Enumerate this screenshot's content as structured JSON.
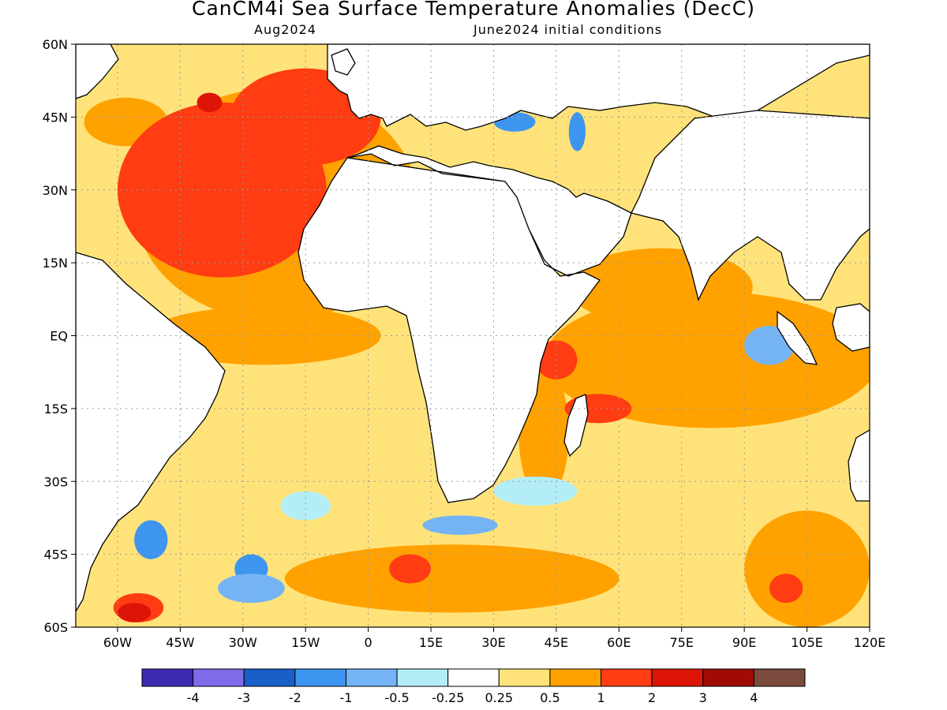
{
  "title": "CanCM4i Sea Surface Temperature Anomalies (DecC)",
  "valid_month": "Aug2024",
  "init_label": "June2024 initial conditions",
  "map": {
    "lon_range": [
      -70,
      120
    ],
    "lat_range": [
      -60,
      60
    ],
    "lat_ticks": [
      {
        "value": 60,
        "label": "60N"
      },
      {
        "value": 45,
        "label": "45N"
      },
      {
        "value": 30,
        "label": "30N"
      },
      {
        "value": 15,
        "label": "15N"
      },
      {
        "value": 0,
        "label": "EQ"
      },
      {
        "value": -15,
        "label": "15S"
      },
      {
        "value": -30,
        "label": "30S"
      },
      {
        "value": -45,
        "label": "45S"
      },
      {
        "value": -60,
        "label": "60S"
      }
    ],
    "lon_ticks": [
      {
        "value": -60,
        "label": "60W"
      },
      {
        "value": -45,
        "label": "45W"
      },
      {
        "value": -30,
        "label": "30W"
      },
      {
        "value": -15,
        "label": "15W"
      },
      {
        "value": 0,
        "label": "0"
      },
      {
        "value": 15,
        "label": "15E"
      },
      {
        "value": 30,
        "label": "30E"
      },
      {
        "value": 45,
        "label": "45E"
      },
      {
        "value": 60,
        "label": "60E"
      },
      {
        "value": 75,
        "label": "75E"
      },
      {
        "value": 90,
        "label": "90E"
      },
      {
        "value": 105,
        "label": "105E"
      },
      {
        "value": 120,
        "label": "120E"
      }
    ]
  },
  "colorbar": {
    "colors": [
      "#3b2bb0",
      "#7d6be8",
      "#1a5fc9",
      "#3e95f0",
      "#74b4f5",
      "#b3eef8",
      "#ffffff",
      "#ffe37a",
      "#ffa200",
      "#ff3c12",
      "#dd1508",
      "#a00c05",
      "#7a4a3c"
    ],
    "labels": [
      "-4",
      "-3",
      "-2",
      "-1",
      "-0.5",
      "-0.25",
      "0.25",
      "0.5",
      "1",
      "2",
      "3",
      "4"
    ]
  },
  "anomaly_regions": [
    {
      "level": 1,
      "lon": -58,
      "lat": 44,
      "rx": 10,
      "ry": 5
    },
    {
      "level": 1,
      "lon": -22,
      "lat": 27,
      "rx": 34,
      "ry": 24
    },
    {
      "level": 1,
      "lon": -25,
      "lat": 0,
      "rx": 28,
      "ry": 6
    },
    {
      "level": 1,
      "lon": 82,
      "lat": -5,
      "rx": 40,
      "ry": 14
    },
    {
      "level": 1,
      "lon": 70,
      "lat": 10,
      "rx": 22,
      "ry": 8
    },
    {
      "level": 1,
      "lon": 20,
      "lat": -50,
      "rx": 40,
      "ry": 7
    },
    {
      "level": 1,
      "lon": 105,
      "lat": -48,
      "rx": 15,
      "ry": 12
    },
    {
      "level": 1,
      "lon": 42,
      "lat": -20,
      "rx": 6,
      "ry": 14
    },
    {
      "level": 2,
      "lon": -35,
      "lat": 30,
      "rx": 25,
      "ry": 18
    },
    {
      "level": 2,
      "lon": -15,
      "lat": 45,
      "rx": 18,
      "ry": 10
    },
    {
      "level": 2,
      "lon": 45,
      "lat": -5,
      "rx": 5,
      "ry": 4
    },
    {
      "level": 2,
      "lon": 55,
      "lat": -15,
      "rx": 8,
      "ry": 3
    },
    {
      "level": 2,
      "lon": -55,
      "lat": -56,
      "rx": 6,
      "ry": 3
    },
    {
      "level": 2,
      "lon": 10,
      "lat": -48,
      "rx": 5,
      "ry": 3
    },
    {
      "level": 2,
      "lon": 100,
      "lat": -52,
      "rx": 4,
      "ry": 3
    },
    {
      "level": 3,
      "lon": -38,
      "lat": 48,
      "rx": 3,
      "ry": 2
    },
    {
      "level": 3,
      "lon": -56,
      "lat": -57,
      "rx": 4,
      "ry": 2
    },
    {
      "level": -1,
      "lon": -52,
      "lat": -42,
      "rx": 4,
      "ry": 4
    },
    {
      "level": -1,
      "lon": -28,
      "lat": -48,
      "rx": 4,
      "ry": 3
    },
    {
      "level": -1,
      "lon": 35,
      "lat": 44,
      "rx": 5,
      "ry": 2
    },
    {
      "level": -1,
      "lon": 50,
      "lat": 42,
      "rx": 2,
      "ry": 4
    },
    {
      "level": -0.5,
      "lon": 22,
      "lat": -39,
      "rx": 9,
      "ry": 2
    },
    {
      "level": -0.5,
      "lon": 96,
      "lat": -2,
      "rx": 6,
      "ry": 4
    },
    {
      "level": -0.5,
      "lon": -28,
      "lat": -52,
      "rx": 8,
      "ry": 3
    },
    {
      "level": -0.25,
      "lon": 40,
      "lat": -32,
      "rx": 10,
      "ry": 3
    },
    {
      "level": -0.25,
      "lon": -15,
      "lat": -35,
      "rx": 6,
      "ry": 3
    }
  ]
}
